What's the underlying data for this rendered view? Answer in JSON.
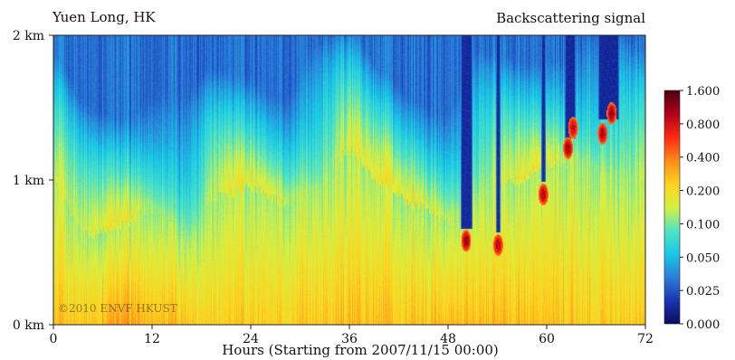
{
  "chart_data": {
    "type": "heatmap",
    "title_left": "Yuen Long, HK",
    "title_right": "Backscattering signal",
    "xlabel": "Hours (Starting from 2007/11/15 00:00)",
    "x_ticks": [
      0,
      12,
      24,
      36,
      48,
      60,
      72
    ],
    "xlim": [
      0,
      72
    ],
    "y_ticks": [
      {
        "value": 0,
        "label": "0 km"
      },
      {
        "value": 1,
        "label": "1 km"
      },
      {
        "value": 2,
        "label": "2 km"
      }
    ],
    "ylim": [
      0,
      2
    ],
    "colorbar": {
      "labels": [
        "1.600",
        "0.800",
        "0.400",
        "0.200",
        "0.100",
        "0.050",
        "0.025",
        "0.000"
      ],
      "colors": [
        "#4a0010",
        "#b0001b",
        "#ff2a10",
        "#ff8a1a",
        "#ffd21f",
        "#d8f040",
        "#52e4c2",
        "#18c8e6",
        "#2a7fd9",
        "#1a34b2",
        "#070b5e"
      ]
    },
    "profile": [
      {
        "x": 0,
        "top": 0.95,
        "bright": 0.2
      },
      {
        "x": 4,
        "top": 0.62,
        "bright": 0.3
      },
      {
        "x": 8,
        "top": 0.68,
        "bright": 0.7
      },
      {
        "x": 12,
        "top": 0.8,
        "bright": 0.55
      },
      {
        "x": 16,
        "top": 0.62,
        "bright": 0.35
      },
      {
        "x": 20,
        "top": 0.88,
        "bright": 0.15
      },
      {
        "x": 24,
        "top": 0.96,
        "bright": 0.2
      },
      {
        "x": 28,
        "top": 0.84,
        "bright": 0.15
      },
      {
        "x": 32,
        "top": 0.96,
        "bright": 0.25
      },
      {
        "x": 36,
        "top": 1.2,
        "bright": 0.4
      },
      {
        "x": 40,
        "top": 0.96,
        "bright": 0.3
      },
      {
        "x": 44,
        "top": 0.82,
        "bright": 0.3
      },
      {
        "x": 48,
        "top": 0.72,
        "bright": 0.4
      },
      {
        "x": 52,
        "top": 0.92,
        "bright": 0.4
      },
      {
        "x": 56,
        "top": 0.98,
        "bright": 0.4
      },
      {
        "x": 60,
        "top": 1.1,
        "bright": 0.3
      },
      {
        "x": 64,
        "top": 1.12,
        "bright": 0.25
      },
      {
        "x": 68,
        "top": 1.05,
        "bright": 0.25
      },
      {
        "x": 72,
        "top": 0.98,
        "bright": 0.2
      }
    ],
    "cloud_columns": [
      {
        "x0": 49.5,
        "x1": 51.0,
        "base": 0.62
      },
      {
        "x0": 53.8,
        "x1": 54.4,
        "base": 0.6
      },
      {
        "x0": 59.3,
        "x1": 59.9,
        "base": 0.95
      },
      {
        "x0": 62.2,
        "x1": 63.5,
        "base": 1.25
      },
      {
        "x0": 66.3,
        "x1": 68.8,
        "base": 1.38
      }
    ],
    "hotspots": [
      {
        "x": 50.2,
        "y": 0.58,
        "level": 1.0
      },
      {
        "x": 54.1,
        "y": 0.55,
        "level": 0.9
      },
      {
        "x": 59.6,
        "y": 0.9,
        "level": 0.9
      },
      {
        "x": 62.6,
        "y": 1.22,
        "level": 1.0
      },
      {
        "x": 63.2,
        "y": 1.36,
        "level": 0.8
      },
      {
        "x": 66.8,
        "y": 1.32,
        "level": 0.9
      },
      {
        "x": 67.9,
        "y": 1.46,
        "level": 1.0
      }
    ],
    "watermark": "©2010 ENVF HKUST"
  }
}
